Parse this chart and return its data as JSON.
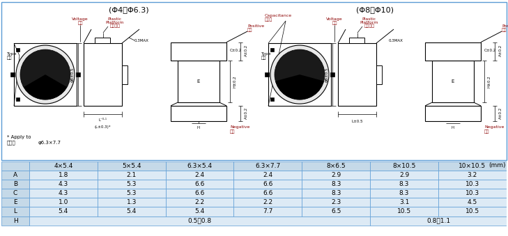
{
  "mm_label": "(mm)",
  "header_row": [
    "",
    "4×5.4",
    "5×5.4",
    "6.3×5.4",
    "6.3×7.7",
    "8×6.5",
    "8×10.5",
    "10×10.5"
  ],
  "rows": [
    [
      "A",
      "1.8",
      "2.1",
      "2.4",
      "2.4",
      "2.9",
      "2.9",
      "3.2"
    ],
    [
      "B",
      "4.3",
      "5.3",
      "6.6",
      "6.6",
      "8.3",
      "8.3",
      "10.3"
    ],
    [
      "C",
      "4.3",
      "5.3",
      "6.6",
      "6.6",
      "8.3",
      "8.3",
      "10.3"
    ],
    [
      "E",
      "1.0",
      "1.3",
      "2.2",
      "2.2",
      "2.3",
      "3.1",
      "4.5"
    ],
    [
      "L",
      "5.4",
      "5.4",
      "5.4",
      "7.7",
      "6.5",
      "10.5",
      "10.5"
    ],
    [
      "H",
      "0.5～0.8",
      "",
      "",
      "",
      "",
      "0.8～1.1",
      ""
    ]
  ],
  "header_bg": "#c5d9e8",
  "row_label_bg": "#c5d9e8",
  "cell_bg": "#ddeaf5",
  "border_color": "#5b9bd5",
  "outer_border": "#5b9bd5",
  "phi_left_text": "(Φ4～Φ6.3)",
  "phi_right_text": "(Φ8～Φ10)",
  "apply_text1": "* Apply to",
  "apply_text2": "适用于",
  "apply_text3": "φ6.3×7.7"
}
